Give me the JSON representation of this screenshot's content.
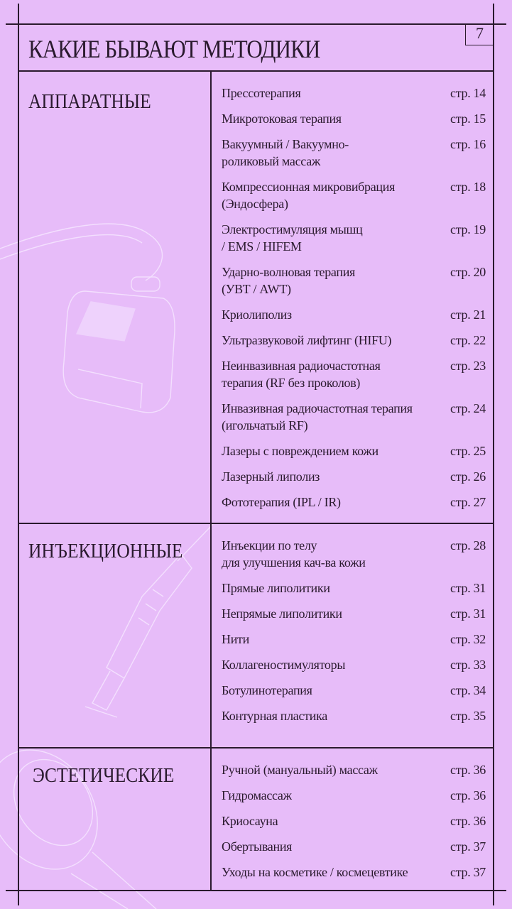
{
  "title": "КАКИЕ БЫВАЮТ МЕТОДИКИ",
  "page_number": "7",
  "colors": {
    "background": "#e7bcf9",
    "ink": "#2a1a2e",
    "illustration": "#f6e6ff"
  },
  "sections": [
    {
      "title": "АППАРАТНЫЕ",
      "illustration": "apparatus-device-icon",
      "items": [
        {
          "name": "Прессотерапия",
          "page": "стр. 14"
        },
        {
          "name": "Микротоковая терапия",
          "page": "стр. 15"
        },
        {
          "name": "Вакуумный / Вакуумно-\nроликовый массаж",
          "page": "стр. 16"
        },
        {
          "name": "Компрессионная микровибрация\n(Эндосфера)",
          "page": "стр. 18"
        },
        {
          "name": "Электростимуляция мышц\n/ EMS / HIFEM",
          "page": "стр. 19"
        },
        {
          "name": "Ударно-волновая терапия\n(УВТ / AWT)",
          "page": "стр. 20"
        },
        {
          "name": "Криолиполиз",
          "page": "стр. 21"
        },
        {
          "name": "Ультразвуковой лифтинг (HIFU)",
          "page": "стр. 22"
        },
        {
          "name": "Неинвазивная радиочастотная\nтерапия (RF без проколов)",
          "page": "стр. 23"
        },
        {
          "name": "Инвазивная радиочастотная терапия\n(игольчатый RF)",
          "page": "стр. 24"
        },
        {
          "name": "Лазеры с повреждением кожи",
          "page": "стр. 25"
        },
        {
          "name": "Лазерный липолиз",
          "page": "стр. 26"
        },
        {
          "name": "Фототерапия (IPL / IR)",
          "page": "стр. 27"
        }
      ]
    },
    {
      "title": "ИНЪЕКЦИОННЫЕ",
      "illustration": "syringe-icon",
      "items": [
        {
          "name": "Инъекции по телу\nдля улучшения кач-ва кожи",
          "page": "стр. 28"
        },
        {
          "name": "Прямые липолитики",
          "page": "стр. 31"
        },
        {
          "name": "Непрямые липолитики",
          "page": "стр. 31"
        },
        {
          "name": "Нити",
          "page": "стр. 32"
        },
        {
          "name": "Коллагеностимуляторы",
          "page": "стр. 33"
        },
        {
          "name": "Ботулинотерапия",
          "page": "стр. 34"
        },
        {
          "name": "Контурная пластика",
          "page": "стр. 35"
        }
      ]
    },
    {
      "title": "ЭСТЕТИЧЕСКИЕ",
      "illustration": "massage-brush-icon",
      "items": [
        {
          "name": "Ручной (мануальный) массаж",
          "page": "стр. 36"
        },
        {
          "name": "Гидромассаж",
          "page": "стр. 36"
        },
        {
          "name": "Криосауна",
          "page": "стр. 36"
        },
        {
          "name": "Обертывания",
          "page": "стр. 37"
        },
        {
          "name": "Уходы на косметике / космецевтике",
          "page": "стр. 37"
        }
      ]
    }
  ]
}
